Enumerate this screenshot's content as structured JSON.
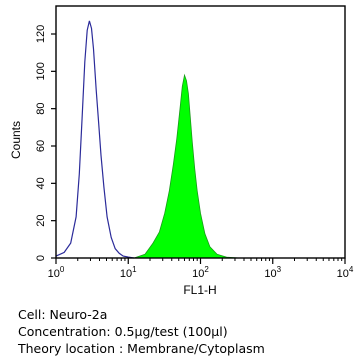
{
  "chart_data": {
    "type": "area",
    "xlabel": "FL1-H",
    "ylabel": "Counts",
    "x_scale": "log",
    "xlim": [
      1,
      10000
    ],
    "ylim": [
      0,
      135
    ],
    "x_ticks": [
      {
        "value": 1,
        "label": "10",
        "exp": "0"
      },
      {
        "value": 10,
        "label": "10",
        "exp": "1"
      },
      {
        "value": 100,
        "label": "10",
        "exp": "2"
      },
      {
        "value": 1000,
        "label": "10",
        "exp": "3"
      },
      {
        "value": 10000,
        "label": "10",
        "exp": "4"
      }
    ],
    "y_ticks": [
      0,
      20,
      40,
      60,
      80,
      100,
      120
    ],
    "grid": false,
    "series": [
      {
        "style": "outline",
        "color": "#2b2b9a",
        "x": [
          1,
          1.3,
          1.6,
          1.9,
          2.1,
          2.3,
          2.5,
          2.7,
          2.9,
          3.1,
          3.3,
          3.6,
          3.9,
          4.2,
          4.6,
          5.1,
          5.8,
          6.6,
          7.5,
          8.5,
          10,
          12
        ],
        "y": [
          1,
          3,
          8,
          22,
          45,
          75,
          105,
          122,
          127,
          123,
          112,
          90,
          72,
          55,
          38,
          22,
          11,
          5,
          2.5,
          1,
          0.5,
          0
        ]
      },
      {
        "style": "filled",
        "color": "#00ff00",
        "x": [
          12,
          17,
          22,
          27,
          32,
          37,
          42,
          47,
          52,
          56,
          60,
          64,
          68,
          72,
          77,
          83,
          90,
          100,
          115,
          135,
          170,
          230,
          350
        ],
        "y": [
          0,
          2,
          8,
          14,
          24,
          36,
          50,
          64,
          80,
          92,
          98,
          95,
          88,
          76,
          62,
          48,
          36,
          24,
          13,
          6,
          2,
          0.5,
          0
        ]
      }
    ]
  },
  "caption": {
    "cell": "Cell: Neuro-2a",
    "concentration": "Concentration: 0.5μg/test (100μl)",
    "location": "Theory location : Membrane/Cytoplasm"
  }
}
